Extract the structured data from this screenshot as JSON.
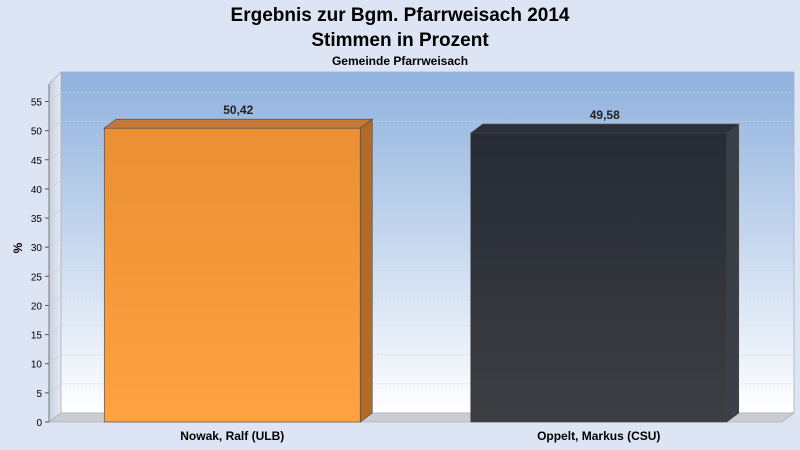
{
  "chart_data": {
    "type": "bar",
    "title_line1": "Ergebnis zur Bgm. Pfarrweisach 2014",
    "title_line2": "Stimmen in Prozent",
    "subtitle": "Gemeinde Pfarrweisach",
    "ylabel": "%",
    "xlabel": "",
    "ylim": [
      0,
      58
    ],
    "yticks": [
      0,
      5,
      10,
      15,
      20,
      25,
      30,
      35,
      40,
      45,
      50,
      55
    ],
    "grid": true,
    "categories": [
      "Nowak, Ralf (ULB)",
      "Oppelt, Markus (CSU)"
    ],
    "values": [
      50.42,
      49.58
    ],
    "value_labels": [
      "50,42",
      "49,58"
    ],
    "colors": [
      "#f4993a",
      "#32363f"
    ]
  }
}
